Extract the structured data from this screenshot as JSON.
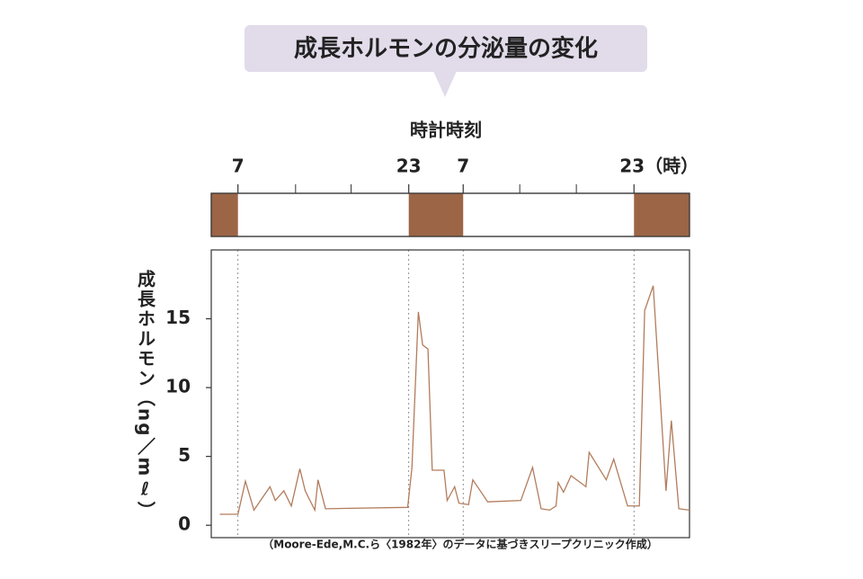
{
  "chart_data": {
    "type": "line",
    "title": "成長ホルモンの分泌量の変化",
    "x_label": "時計時刻",
    "y_label": "成長ホルモン（ng／mℓ）",
    "footnote": "（Moore-Ede,M.C.ら〈1982年〉のデータに基づきスリープクリニック作成）",
    "xlim": [
      4.5,
      49.3
    ],
    "xticks": [
      7,
      23,
      {
        "value": 28.1,
        "label": "7"
      },
      {
        "value": 44.1,
        "label": "23（時）"
      }
    ],
    "minor_xticks": [
      12.4,
      17.6,
      33.4,
      38.7
    ],
    "ylim": [
      -0.9,
      20
    ],
    "yticks": [
      0,
      5,
      10,
      15
    ],
    "sleep_periods": [
      [
        4.5,
        7
      ],
      [
        23,
        28.1
      ],
      [
        44.1,
        49.3
      ]
    ],
    "sleep_color": "#9b6546",
    "series": [
      {
        "color": "#b27c5c",
        "x": [
          5.3,
          7.0,
          7.7,
          8.5,
          10.0,
          10.5,
          11.3,
          12.0,
          12.8,
          13.3,
          14.2,
          14.5,
          15.2,
          22.9,
          23.3,
          23.9,
          24.3,
          24.8,
          25.2,
          26.3,
          26.6,
          27.3,
          27.7,
          28.6,
          29.0,
          30.4,
          33.5,
          34.6,
          35.4,
          36.2,
          36.8,
          37.0,
          37.5,
          38.2,
          39.6,
          39.9,
          41.5,
          42.2,
          43.5,
          44.6,
          45.1,
          45.9,
          47.1,
          47.6,
          48.3,
          49.3
        ],
        "values": [
          0.8,
          0.8,
          3.2,
          1.1,
          2.8,
          1.8,
          2.5,
          1.4,
          4.1,
          2.5,
          1.1,
          3.3,
          1.2,
          1.3,
          4.2,
          15.5,
          13.1,
          12.8,
          4.0,
          4.0,
          1.8,
          2.8,
          1.6,
          1.5,
          3.3,
          1.7,
          1.8,
          4.2,
          1.2,
          1.1,
          1.4,
          3.1,
          2.4,
          3.6,
          2.8,
          5.3,
          3.3,
          4.8,
          1.4,
          1.4,
          15.6,
          17.4,
          2.5,
          7.6,
          1.2,
          1.1
        ]
      }
    ]
  }
}
